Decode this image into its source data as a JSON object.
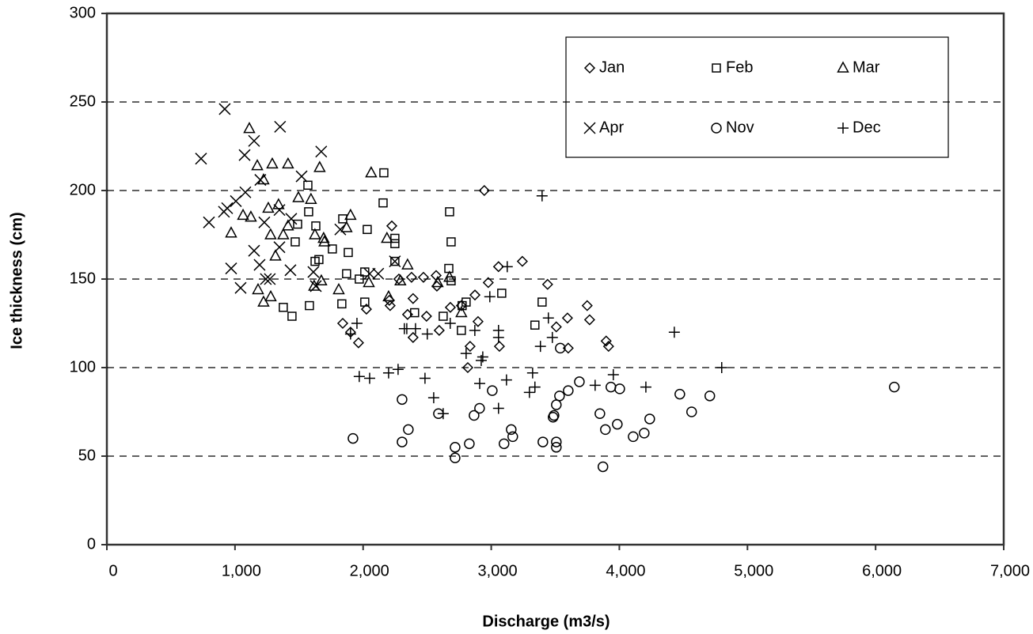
{
  "chart_data": {
    "type": "scatter",
    "x_label": "Discharge (m3/s)",
    "y_label": "Ice thickness (cm)",
    "xlim": [
      0,
      7000
    ],
    "ylim": [
      0,
      300
    ],
    "xticks": [
      0,
      {
        "value": 1000,
        "label": "1,000"
      },
      {
        "value": 2000,
        "label": "2,000"
      },
      {
        "value": 3000,
        "label": "3,000"
      },
      {
        "value": 4000,
        "label": "4,000"
      },
      {
        "value": 5000,
        "label": "5,000"
      },
      {
        "value": 6000,
        "label": "6,000"
      },
      {
        "value": 7000,
        "label": "7,000"
      }
    ],
    "yticks": [
      0,
      50,
      100,
      150,
      200,
      250,
      300
    ],
    "grid": true,
    "series": [
      {
        "name": "Jan",
        "marker": "diamond",
        "color": "#000000",
        "x": [
          2946,
          2224,
          3243,
          3057,
          2977,
          2873,
          2570,
          2471,
          2378,
          2576,
          2279,
          2211,
          2390,
          2026,
          2205,
          2347,
          2495,
          2681,
          2767,
          2897,
          2594,
          2390,
          1841,
          1902,
          1964,
          2835,
          2817,
          3064,
          3440,
          3595,
          3508,
          3601,
          3749,
          3768,
          3897,
          3916
        ],
        "y": [
          200,
          180,
          160,
          157,
          148,
          141,
          152,
          151,
          151,
          146,
          150,
          135,
          139,
          133,
          138,
          130,
          129,
          134,
          135,
          126,
          121,
          117,
          125,
          120,
          114,
          112,
          100,
          112,
          147,
          128,
          123,
          111,
          135,
          127,
          115,
          112
        ]
      },
      {
        "name": "Feb",
        "marker": "square",
        "color": "#000000",
        "x": [
          2162,
          1569,
          2156,
          2675,
          2248,
          2248,
          2687,
          1841,
          2032,
          1575,
          1489,
          1631,
          1470,
          1760,
          1884,
          1655,
          1625,
          2669,
          2013,
          1871,
          1970,
          2687,
          3082,
          2013,
          1834,
          1377,
          1581,
          1445,
          2402,
          2625,
          2804,
          2773,
          3397,
          3341,
          2767,
          2248
        ],
        "y": [
          210,
          203,
          193,
          188,
          173,
          170,
          171,
          184,
          178,
          188,
          181,
          180,
          171,
          167,
          165,
          161,
          160,
          156,
          154,
          153,
          150,
          149,
          142,
          137,
          136,
          134,
          135,
          129,
          131,
          129,
          137,
          135,
          137,
          124,
          121,
          160
        ]
      },
      {
        "name": "Mar",
        "marker": "triangle",
        "color": "#000000",
        "x": [
          1112,
          1291,
          1414,
          1174,
          1661,
          2063,
          1223,
          1495,
          1593,
          1340,
          1260,
          1063,
          1124,
          1902,
          970,
          1377,
          1624,
          1278,
          1692,
          1698,
          1871,
          2186,
          2347,
          1316,
          1810,
          2045,
          1674,
          1618,
          1180,
          1223,
          1279,
          2199,
          2291,
          2582,
          2674,
          2767,
          1414
        ],
        "y": [
          235,
          215,
          215,
          214,
          213,
          210,
          206,
          196,
          195,
          192,
          190,
          186,
          185,
          186,
          176,
          175,
          175,
          175,
          173,
          171,
          179,
          173,
          158,
          163,
          144,
          148,
          149,
          146,
          144,
          137,
          140,
          140,
          149,
          148,
          151,
          131,
          180
        ]
      },
      {
        "name": "Apr",
        "marker": "cross",
        "color": "#000000",
        "x": [
          920,
          1352,
          1673,
          1149,
          1075,
          735,
          1520,
          1198,
          1081,
          1007,
          939,
          914,
          797,
          1229,
          1347,
          1439,
          1822,
          1347,
          1149,
          1192,
          970,
          1433,
          2118,
          1612,
          1044,
          1241,
          1272,
          1631,
          2051,
          2248
        ],
        "y": [
          246,
          236,
          222,
          228,
          220,
          218,
          208,
          206,
          199,
          194,
          190,
          188,
          182,
          182,
          189,
          184,
          178,
          168,
          166,
          158,
          156,
          155,
          153,
          154,
          145,
          150,
          150,
          146,
          153,
          160
        ]
      },
      {
        "name": "Nov",
        "marker": "circle",
        "color": "#000000",
        "x": [
          1921,
          2304,
          2353,
          2304,
          2588,
          2718,
          2718,
          2829,
          2866,
          2909,
          3008,
          3156,
          3168,
          3100,
          3403,
          3490,
          3483,
          3508,
          3533,
          3601,
          3688,
          3539,
          3508,
          3508,
          3848,
          3891,
          3872,
          3934,
          4003,
          3984,
          4108,
          4194,
          4237,
          4472,
          4564,
          4706,
          6146
        ],
        "y": [
          60,
          82,
          65,
          58,
          74,
          55,
          49,
          57,
          73,
          77,
          87,
          65,
          61,
          57,
          58,
          73,
          72,
          79,
          84,
          87,
          92,
          111,
          58,
          55,
          74,
          65,
          44,
          89,
          88,
          68,
          61,
          63,
          71,
          85,
          75,
          84,
          89
        ]
      },
      {
        "name": "Dec",
        "marker": "plus",
        "color": "#000000",
        "x": [
          3397,
          3125,
          2989,
          3446,
          3477,
          4429,
          4799,
          3953,
          4207,
          3811,
          1952,
          1902,
          2322,
          2409,
          2501,
          2680,
          2872,
          3057,
          3057,
          3384,
          2804,
          2922,
          2934,
          1970,
          2051,
          2199,
          2273,
          2483,
          2551,
          2625,
          2910,
          3119,
          3323,
          3341,
          3298,
          3057,
          2341
        ],
        "y": [
          197,
          157,
          140,
          128,
          117,
          120,
          100,
          96,
          89,
          90,
          125,
          119,
          122,
          122,
          119,
          125,
          121,
          121,
          117,
          112,
          108,
          104,
          106,
          95,
          94,
          97,
          99,
          94,
          83,
          74,
          91,
          93,
          97,
          89,
          86,
          77,
          122
        ]
      }
    ]
  }
}
